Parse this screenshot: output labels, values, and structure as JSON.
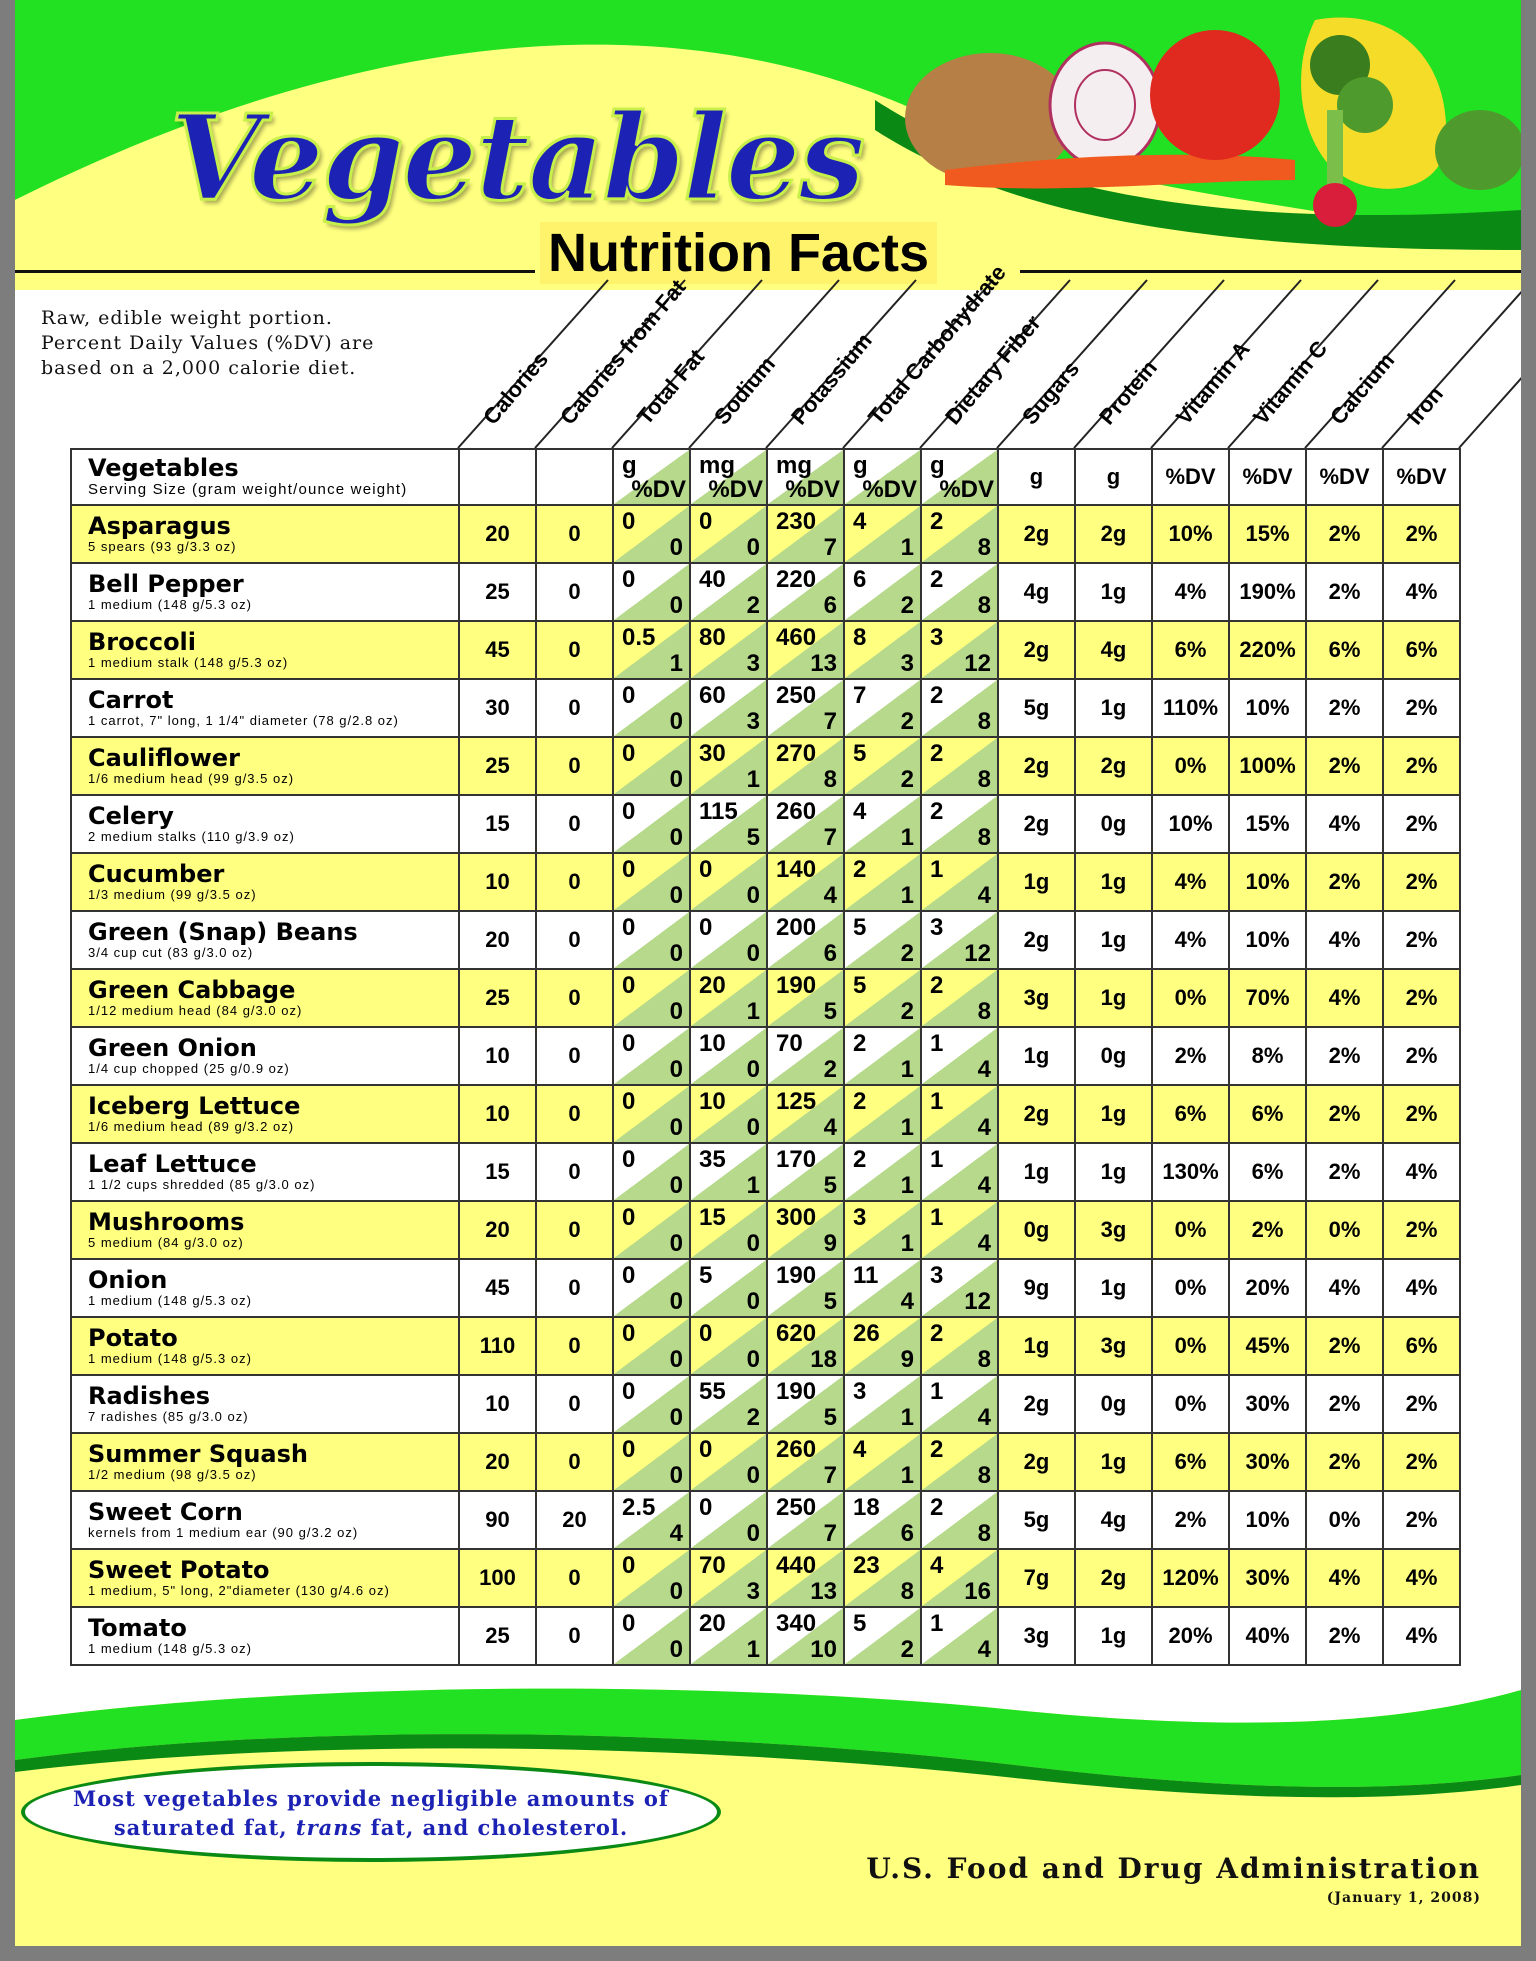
{
  "header": {
    "title": "Vegetables",
    "subtitle": "Nutrition Facts"
  },
  "intro": [
    "Raw, edible weight portion.",
    "Percent Daily Values (%DV) are",
    "based on a 2,000 calorie diet."
  ],
  "columns": [
    "Calories",
    "Calories from Fat",
    "Total Fat",
    "Sodium",
    "Potassium",
    "Total Carbohydrate",
    "Dietary Fiber",
    "Sugars",
    "Protein",
    "Vitamin A",
    "Vitamin C",
    "Calcium",
    "Iron"
  ],
  "table_header": {
    "name": "Vegetables",
    "serving": "Serving Size (gram weight/ounce weight)",
    "units": [
      "",
      "",
      [
        "g",
        "%DV"
      ],
      [
        "mg",
        "%DV"
      ],
      [
        "mg",
        "%DV"
      ],
      [
        "g",
        "%DV"
      ],
      [
        "g",
        "%DV"
      ],
      "g",
      "g",
      "%DV",
      "%DV",
      "%DV",
      "%DV"
    ]
  },
  "rows": [
    {
      "name": "Asparagus",
      "serving": "5 spears (93 g/3.3 oz)",
      "cal": "20",
      "cff": "0",
      "fat": [
        "0",
        "0"
      ],
      "sodium": [
        "0",
        "0"
      ],
      "potassium": [
        "230",
        "7"
      ],
      "carb": [
        "4",
        "1"
      ],
      "fiber": [
        "2",
        "8"
      ],
      "sugars": "2g",
      "protein": "2g",
      "vita": "10%",
      "vitc": "15%",
      "calcium": "2%",
      "iron": "2%"
    },
    {
      "name": "Bell Pepper",
      "serving": "1 medium (148 g/5.3 oz)",
      "cal": "25",
      "cff": "0",
      "fat": [
        "0",
        "0"
      ],
      "sodium": [
        "40",
        "2"
      ],
      "potassium": [
        "220",
        "6"
      ],
      "carb": [
        "6",
        "2"
      ],
      "fiber": [
        "2",
        "8"
      ],
      "sugars": "4g",
      "protein": "1g",
      "vita": "4%",
      "vitc": "190%",
      "calcium": "2%",
      "iron": "4%"
    },
    {
      "name": "Broccoli",
      "serving": "1 medium stalk (148 g/5.3 oz)",
      "cal": "45",
      "cff": "0",
      "fat": [
        "0.5",
        "1"
      ],
      "sodium": [
        "80",
        "3"
      ],
      "potassium": [
        "460",
        "13"
      ],
      "carb": [
        "8",
        "3"
      ],
      "fiber": [
        "3",
        "12"
      ],
      "sugars": "2g",
      "protein": "4g",
      "vita": "6%",
      "vitc": "220%",
      "calcium": "6%",
      "iron": "6%"
    },
    {
      "name": "Carrot",
      "serving": "1 carrot, 7\" long, 1 1/4\" diameter (78 g/2.8 oz)",
      "cal": "30",
      "cff": "0",
      "fat": [
        "0",
        "0"
      ],
      "sodium": [
        "60",
        "3"
      ],
      "potassium": [
        "250",
        "7"
      ],
      "carb": [
        "7",
        "2"
      ],
      "fiber": [
        "2",
        "8"
      ],
      "sugars": "5g",
      "protein": "1g",
      "vita": "110%",
      "vitc": "10%",
      "calcium": "2%",
      "iron": "2%"
    },
    {
      "name": "Cauliflower",
      "serving": "1/6 medium head (99 g/3.5 oz)",
      "cal": "25",
      "cff": "0",
      "fat": [
        "0",
        "0"
      ],
      "sodium": [
        "30",
        "1"
      ],
      "potassium": [
        "270",
        "8"
      ],
      "carb": [
        "5",
        "2"
      ],
      "fiber": [
        "2",
        "8"
      ],
      "sugars": "2g",
      "protein": "2g",
      "vita": "0%",
      "vitc": "100%",
      "calcium": "2%",
      "iron": "2%"
    },
    {
      "name": "Celery",
      "serving": "2 medium stalks (110 g/3.9 oz)",
      "cal": "15",
      "cff": "0",
      "fat": [
        "0",
        "0"
      ],
      "sodium": [
        "115",
        "5"
      ],
      "potassium": [
        "260",
        "7"
      ],
      "carb": [
        "4",
        "1"
      ],
      "fiber": [
        "2",
        "8"
      ],
      "sugars": "2g",
      "protein": "0g",
      "vita": "10%",
      "vitc": "15%",
      "calcium": "4%",
      "iron": "2%"
    },
    {
      "name": "Cucumber",
      "serving": "1/3 medium (99 g/3.5 oz)",
      "cal": "10",
      "cff": "0",
      "fat": [
        "0",
        "0"
      ],
      "sodium": [
        "0",
        "0"
      ],
      "potassium": [
        "140",
        "4"
      ],
      "carb": [
        "2",
        "1"
      ],
      "fiber": [
        "1",
        "4"
      ],
      "sugars": "1g",
      "protein": "1g",
      "vita": "4%",
      "vitc": "10%",
      "calcium": "2%",
      "iron": "2%"
    },
    {
      "name": "Green (Snap) Beans",
      "serving": "3/4 cup cut (83 g/3.0 oz)",
      "cal": "20",
      "cff": "0",
      "fat": [
        "0",
        "0"
      ],
      "sodium": [
        "0",
        "0"
      ],
      "potassium": [
        "200",
        "6"
      ],
      "carb": [
        "5",
        "2"
      ],
      "fiber": [
        "3",
        "12"
      ],
      "sugars": "2g",
      "protein": "1g",
      "vita": "4%",
      "vitc": "10%",
      "calcium": "4%",
      "iron": "2%"
    },
    {
      "name": "Green Cabbage",
      "serving": "1/12 medium head (84 g/3.0 oz)",
      "cal": "25",
      "cff": "0",
      "fat": [
        "0",
        "0"
      ],
      "sodium": [
        "20",
        "1"
      ],
      "potassium": [
        "190",
        "5"
      ],
      "carb": [
        "5",
        "2"
      ],
      "fiber": [
        "2",
        "8"
      ],
      "sugars": "3g",
      "protein": "1g",
      "vita": "0%",
      "vitc": "70%",
      "calcium": "4%",
      "iron": "2%"
    },
    {
      "name": "Green Onion",
      "serving": "1/4 cup chopped (25 g/0.9 oz)",
      "cal": "10",
      "cff": "0",
      "fat": [
        "0",
        "0"
      ],
      "sodium": [
        "10",
        "0"
      ],
      "potassium": [
        "70",
        "2"
      ],
      "carb": [
        "2",
        "1"
      ],
      "fiber": [
        "1",
        "4"
      ],
      "sugars": "1g",
      "protein": "0g",
      "vita": "2%",
      "vitc": "8%",
      "calcium": "2%",
      "iron": "2%"
    },
    {
      "name": "Iceberg Lettuce",
      "serving": "1/6 medium head (89 g/3.2 oz)",
      "cal": "10",
      "cff": "0",
      "fat": [
        "0",
        "0"
      ],
      "sodium": [
        "10",
        "0"
      ],
      "potassium": [
        "125",
        "4"
      ],
      "carb": [
        "2",
        "1"
      ],
      "fiber": [
        "1",
        "4"
      ],
      "sugars": "2g",
      "protein": "1g",
      "vita": "6%",
      "vitc": "6%",
      "calcium": "2%",
      "iron": "2%"
    },
    {
      "name": "Leaf Lettuce",
      "serving": "1 1/2 cups shredded (85 g/3.0 oz)",
      "cal": "15",
      "cff": "0",
      "fat": [
        "0",
        "0"
      ],
      "sodium": [
        "35",
        "1"
      ],
      "potassium": [
        "170",
        "5"
      ],
      "carb": [
        "2",
        "1"
      ],
      "fiber": [
        "1",
        "4"
      ],
      "sugars": "1g",
      "protein": "1g",
      "vita": "130%",
      "vitc": "6%",
      "calcium": "2%",
      "iron": "4%"
    },
    {
      "name": "Mushrooms",
      "serving": "5 medium (84 g/3.0 oz)",
      "cal": "20",
      "cff": "0",
      "fat": [
        "0",
        "0"
      ],
      "sodium": [
        "15",
        "0"
      ],
      "potassium": [
        "300",
        "9"
      ],
      "carb": [
        "3",
        "1"
      ],
      "fiber": [
        "1",
        "4"
      ],
      "sugars": "0g",
      "protein": "3g",
      "vita": "0%",
      "vitc": "2%",
      "calcium": "0%",
      "iron": "2%"
    },
    {
      "name": "Onion",
      "serving": "1 medium (148 g/5.3 oz)",
      "cal": "45",
      "cff": "0",
      "fat": [
        "0",
        "0"
      ],
      "sodium": [
        "5",
        "0"
      ],
      "potassium": [
        "190",
        "5"
      ],
      "carb": [
        "11",
        "4"
      ],
      "fiber": [
        "3",
        "12"
      ],
      "sugars": "9g",
      "protein": "1g",
      "vita": "0%",
      "vitc": "20%",
      "calcium": "4%",
      "iron": "4%"
    },
    {
      "name": "Potato",
      "serving": "1 medium (148 g/5.3 oz)",
      "cal": "110",
      "cff": "0",
      "fat": [
        "0",
        "0"
      ],
      "sodium": [
        "0",
        "0"
      ],
      "potassium": [
        "620",
        "18"
      ],
      "carb": [
        "26",
        "9"
      ],
      "fiber": [
        "2",
        "8"
      ],
      "sugars": "1g",
      "protein": "3g",
      "vita": "0%",
      "vitc": "45%",
      "calcium": "2%",
      "iron": "6%"
    },
    {
      "name": "Radishes",
      "serving": "7 radishes (85 g/3.0 oz)",
      "cal": "10",
      "cff": "0",
      "fat": [
        "0",
        "0"
      ],
      "sodium": [
        "55",
        "2"
      ],
      "potassium": [
        "190",
        "5"
      ],
      "carb": [
        "3",
        "1"
      ],
      "fiber": [
        "1",
        "4"
      ],
      "sugars": "2g",
      "protein": "0g",
      "vita": "0%",
      "vitc": "30%",
      "calcium": "2%",
      "iron": "2%"
    },
    {
      "name": "Summer Squash",
      "serving": "1/2 medium (98 g/3.5 oz)",
      "cal": "20",
      "cff": "0",
      "fat": [
        "0",
        "0"
      ],
      "sodium": [
        "0",
        "0"
      ],
      "potassium": [
        "260",
        "7"
      ],
      "carb": [
        "4",
        "1"
      ],
      "fiber": [
        "2",
        "8"
      ],
      "sugars": "2g",
      "protein": "1g",
      "vita": "6%",
      "vitc": "30%",
      "calcium": "2%",
      "iron": "2%"
    },
    {
      "name": "Sweet Corn",
      "serving": "kernels from 1 medium ear (90 g/3.2 oz)",
      "cal": "90",
      "cff": "20",
      "fat": [
        "2.5",
        "4"
      ],
      "sodium": [
        "0",
        "0"
      ],
      "potassium": [
        "250",
        "7"
      ],
      "carb": [
        "18",
        "6"
      ],
      "fiber": [
        "2",
        "8"
      ],
      "sugars": "5g",
      "protein": "4g",
      "vita": "2%",
      "vitc": "10%",
      "calcium": "0%",
      "iron": "2%"
    },
    {
      "name": "Sweet Potato",
      "serving": "1 medium, 5\" long, 2\"diameter (130 g/4.6 oz)",
      "cal": "100",
      "cff": "0",
      "fat": [
        "0",
        "0"
      ],
      "sodium": [
        "70",
        "3"
      ],
      "potassium": [
        "440",
        "13"
      ],
      "carb": [
        "23",
        "8"
      ],
      "fiber": [
        "4",
        "16"
      ],
      "sugars": "7g",
      "protein": "2g",
      "vita": "120%",
      "vitc": "30%",
      "calcium": "4%",
      "iron": "4%"
    },
    {
      "name": "Tomato",
      "serving": "1 medium (148 g/5.3 oz)",
      "cal": "25",
      "cff": "0",
      "fat": [
        "0",
        "0"
      ],
      "sodium": [
        "20",
        "1"
      ],
      "potassium": [
        "340",
        "10"
      ],
      "carb": [
        "5",
        "2"
      ],
      "fiber": [
        "1",
        "4"
      ],
      "sugars": "3g",
      "protein": "1g",
      "vita": "20%",
      "vitc": "40%",
      "calcium": "2%",
      "iron": "4%"
    }
  ],
  "footer": {
    "note_line1": "Most vegetables provide negligible amounts of",
    "note_line2_a": "saturated fat, ",
    "note_line2_b": "trans",
    "note_line2_c": " fat, and cholesterol.",
    "agency": "U.S. Food and Drug Administration",
    "date": "(January 1, 2008)"
  },
  "colors": {
    "green": "#1ee01e",
    "yellow": "#ffff80",
    "split_green": "#b6d98c",
    "title_blue": "#1c22b4"
  }
}
